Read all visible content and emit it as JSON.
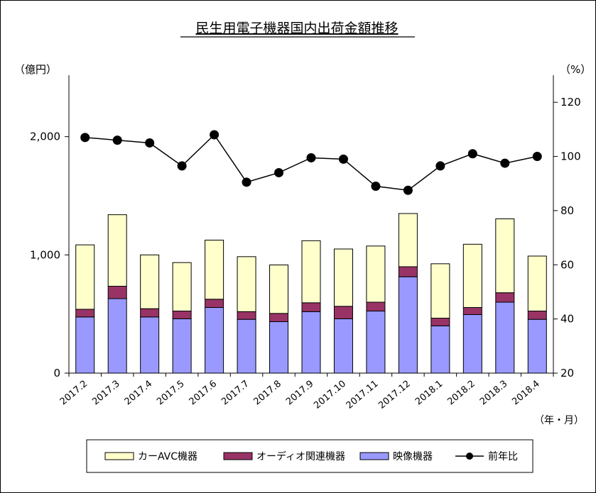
{
  "chart_data": {
    "type": "bar",
    "title": "民生用電子機器国内出荷金額推移",
    "left_axis_unit": "（億円）",
    "right_axis_unit": "（%）",
    "x_unit": "（年・月）",
    "categories": [
      "2017.2",
      "2017.3",
      "2017.4",
      "2017.5",
      "2017.6",
      "2017.7",
      "2017.8",
      "2017.9",
      "2017.10",
      "2017.11",
      "2017.12",
      "2018.1",
      "2018.2",
      "2018.3",
      "2018.4"
    ],
    "left_ticks": [
      "0",
      "1,000",
      "2,000"
    ],
    "left_tick_values": [
      0,
      1000,
      2000
    ],
    "right_ticks": [
      "20",
      "40",
      "60",
      "80",
      "100",
      "120"
    ],
    "right_tick_values": [
      20,
      40,
      60,
      80,
      100,
      120
    ],
    "ylim": [
      0,
      2520
    ],
    "y2lim": [
      20,
      130
    ],
    "grid": false,
    "legend_position": "bottom",
    "series": [
      {
        "name": "映像機器",
        "kind": "bar",
        "color": "#9999ff",
        "values": [
          475,
          630,
          475,
          460,
          555,
          455,
          435,
          520,
          460,
          525,
          815,
          400,
          495,
          600,
          455
        ]
      },
      {
        "name": "オーディオ関連機器",
        "kind": "bar",
        "color": "#993366",
        "values": [
          65,
          105,
          70,
          65,
          70,
          65,
          70,
          75,
          105,
          75,
          85,
          65,
          60,
          80,
          70
        ]
      },
      {
        "name": "カーAVC機器",
        "kind": "bar",
        "color": "#ffffcc",
        "values": [
          545,
          605,
          455,
          410,
          500,
          465,
          410,
          525,
          485,
          475,
          450,
          460,
          535,
          625,
          465
        ]
      },
      {
        "name": "前年比",
        "kind": "line",
        "axis": "right",
        "color": "#000000",
        "values": [
          107,
          106,
          105,
          96.5,
          108,
          90.5,
          94,
          99.5,
          99,
          89,
          87.5,
          96.5,
          101,
          97.5,
          100
        ]
      }
    ]
  },
  "legend_order": [
    "カーAVC機器",
    "オーディオ関連機器",
    "映像機器",
    "前年比"
  ]
}
